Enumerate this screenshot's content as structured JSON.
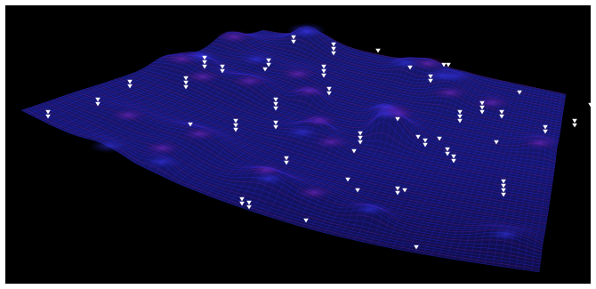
{
  "scene": {
    "background": "#000000",
    "frame_color": "#ffffff",
    "mesh_colors": {
      "primary": "#2a2ad8",
      "secondary": "#6a1f9a",
      "highlight": "#4b4bff"
    },
    "marker_color": "#ffffff",
    "marker_shape": "down-triangle-icon"
  }
}
